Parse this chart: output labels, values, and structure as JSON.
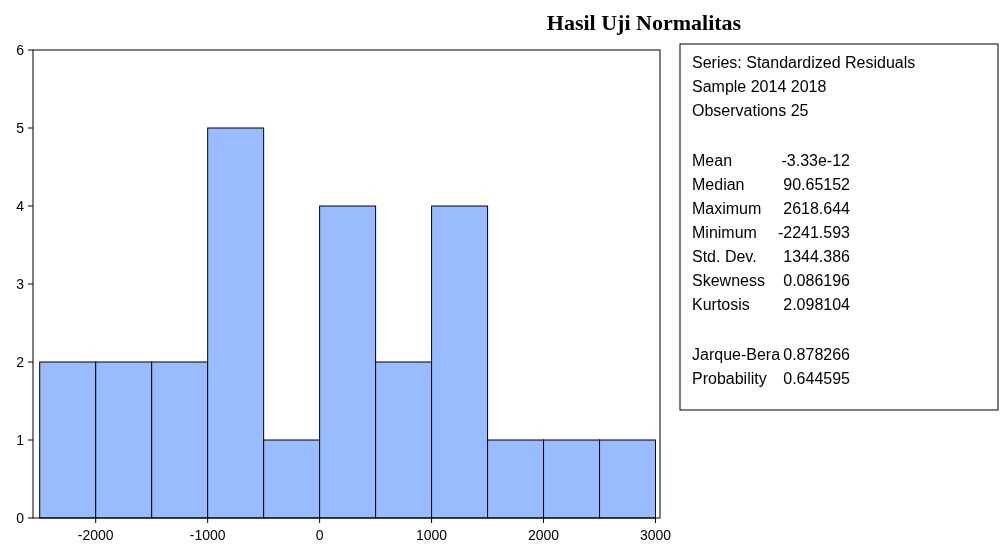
{
  "chart_data": [
    {
      "type": "histogram",
      "title": "Hasil Uji Normalitas",
      "bins": [
        -2500,
        -2000,
        -1500,
        -1000,
        -500,
        0,
        500,
        1000,
        1500,
        2000,
        2500,
        3000
      ],
      "values": [
        2,
        2,
        2,
        5,
        1,
        4,
        2,
        4,
        1,
        1,
        1
      ],
      "color": "#99bbff",
      "xlim": [
        -2560,
        3040
      ],
      "xticks": [
        -2000,
        -1000,
        0,
        1000,
        2000,
        3000
      ],
      "ylim": [
        0,
        6
      ],
      "yticks": [
        0,
        1,
        2,
        3,
        4,
        5,
        6
      ],
      "grid": false
    },
    {
      "type": "other",
      "annotations": [
        "Series: Standardized Residuals",
        "Sample 2014 2018",
        "Observations 25",
        "Mean\t-3.33e-12",
        "Median\t90.65152",
        "Maximum\t2618.644",
        "Minimum\t-2241.593",
        "Std. Dev.\t1344.386",
        "Skewness\t0.086196",
        "Kurtosis\t2.098104",
        "Jarque-Bera\t0.878266",
        "Probability\t0.644595"
      ]
    }
  ]
}
